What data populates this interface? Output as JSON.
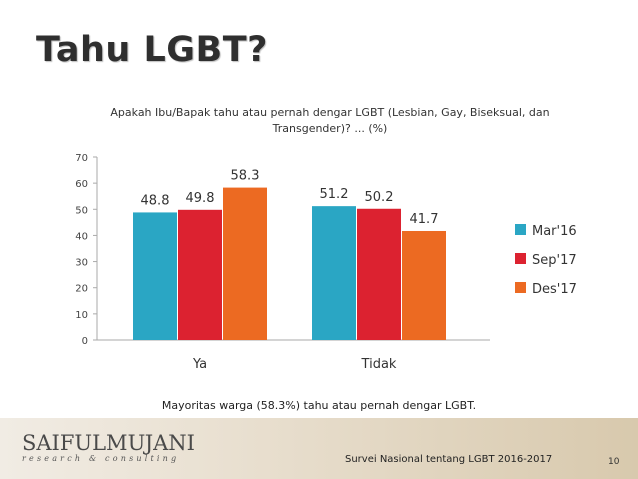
{
  "slide": {
    "title": "Tahu LGBT?",
    "question": "Apakah Ibu/Bapak tahu atau pernah dengar LGBT (Lesbian, Gay, Biseksual, dan Transgender)? ... (%)",
    "summary": "Mayoritas warga (58.3%) tahu atau pernah dengar LGBT.",
    "source": "Survei Nasional tentang LGBT 2016-2017",
    "page_number": "10"
  },
  "logo": {
    "name": "SAIFULMUJANI",
    "tagline": "research & consulting"
  },
  "chart_data": {
    "type": "bar",
    "title": "Apakah Ibu/Bapak tahu atau pernah dengar LGBT (Lesbian, Gay, Biseksual, dan Transgender)? ... (%)",
    "categories": [
      "Ya",
      "Tidak"
    ],
    "series": [
      {
        "name": "Mar'16",
        "values": [
          48.8,
          51.2
        ],
        "color": "#2aa6c4"
      },
      {
        "name": "Sep'17",
        "values": [
          49.8,
          50.2
        ],
        "color": "#dc2230"
      },
      {
        "name": "Des'17",
        "values": [
          58.3,
          41.7
        ],
        "color": "#ec6a22"
      }
    ],
    "ylim": [
      0,
      70
    ],
    "yticks": [
      0,
      10,
      20,
      30,
      40,
      50,
      60,
      70
    ],
    "grid": false,
    "legend": "right",
    "data_labels": true
  }
}
